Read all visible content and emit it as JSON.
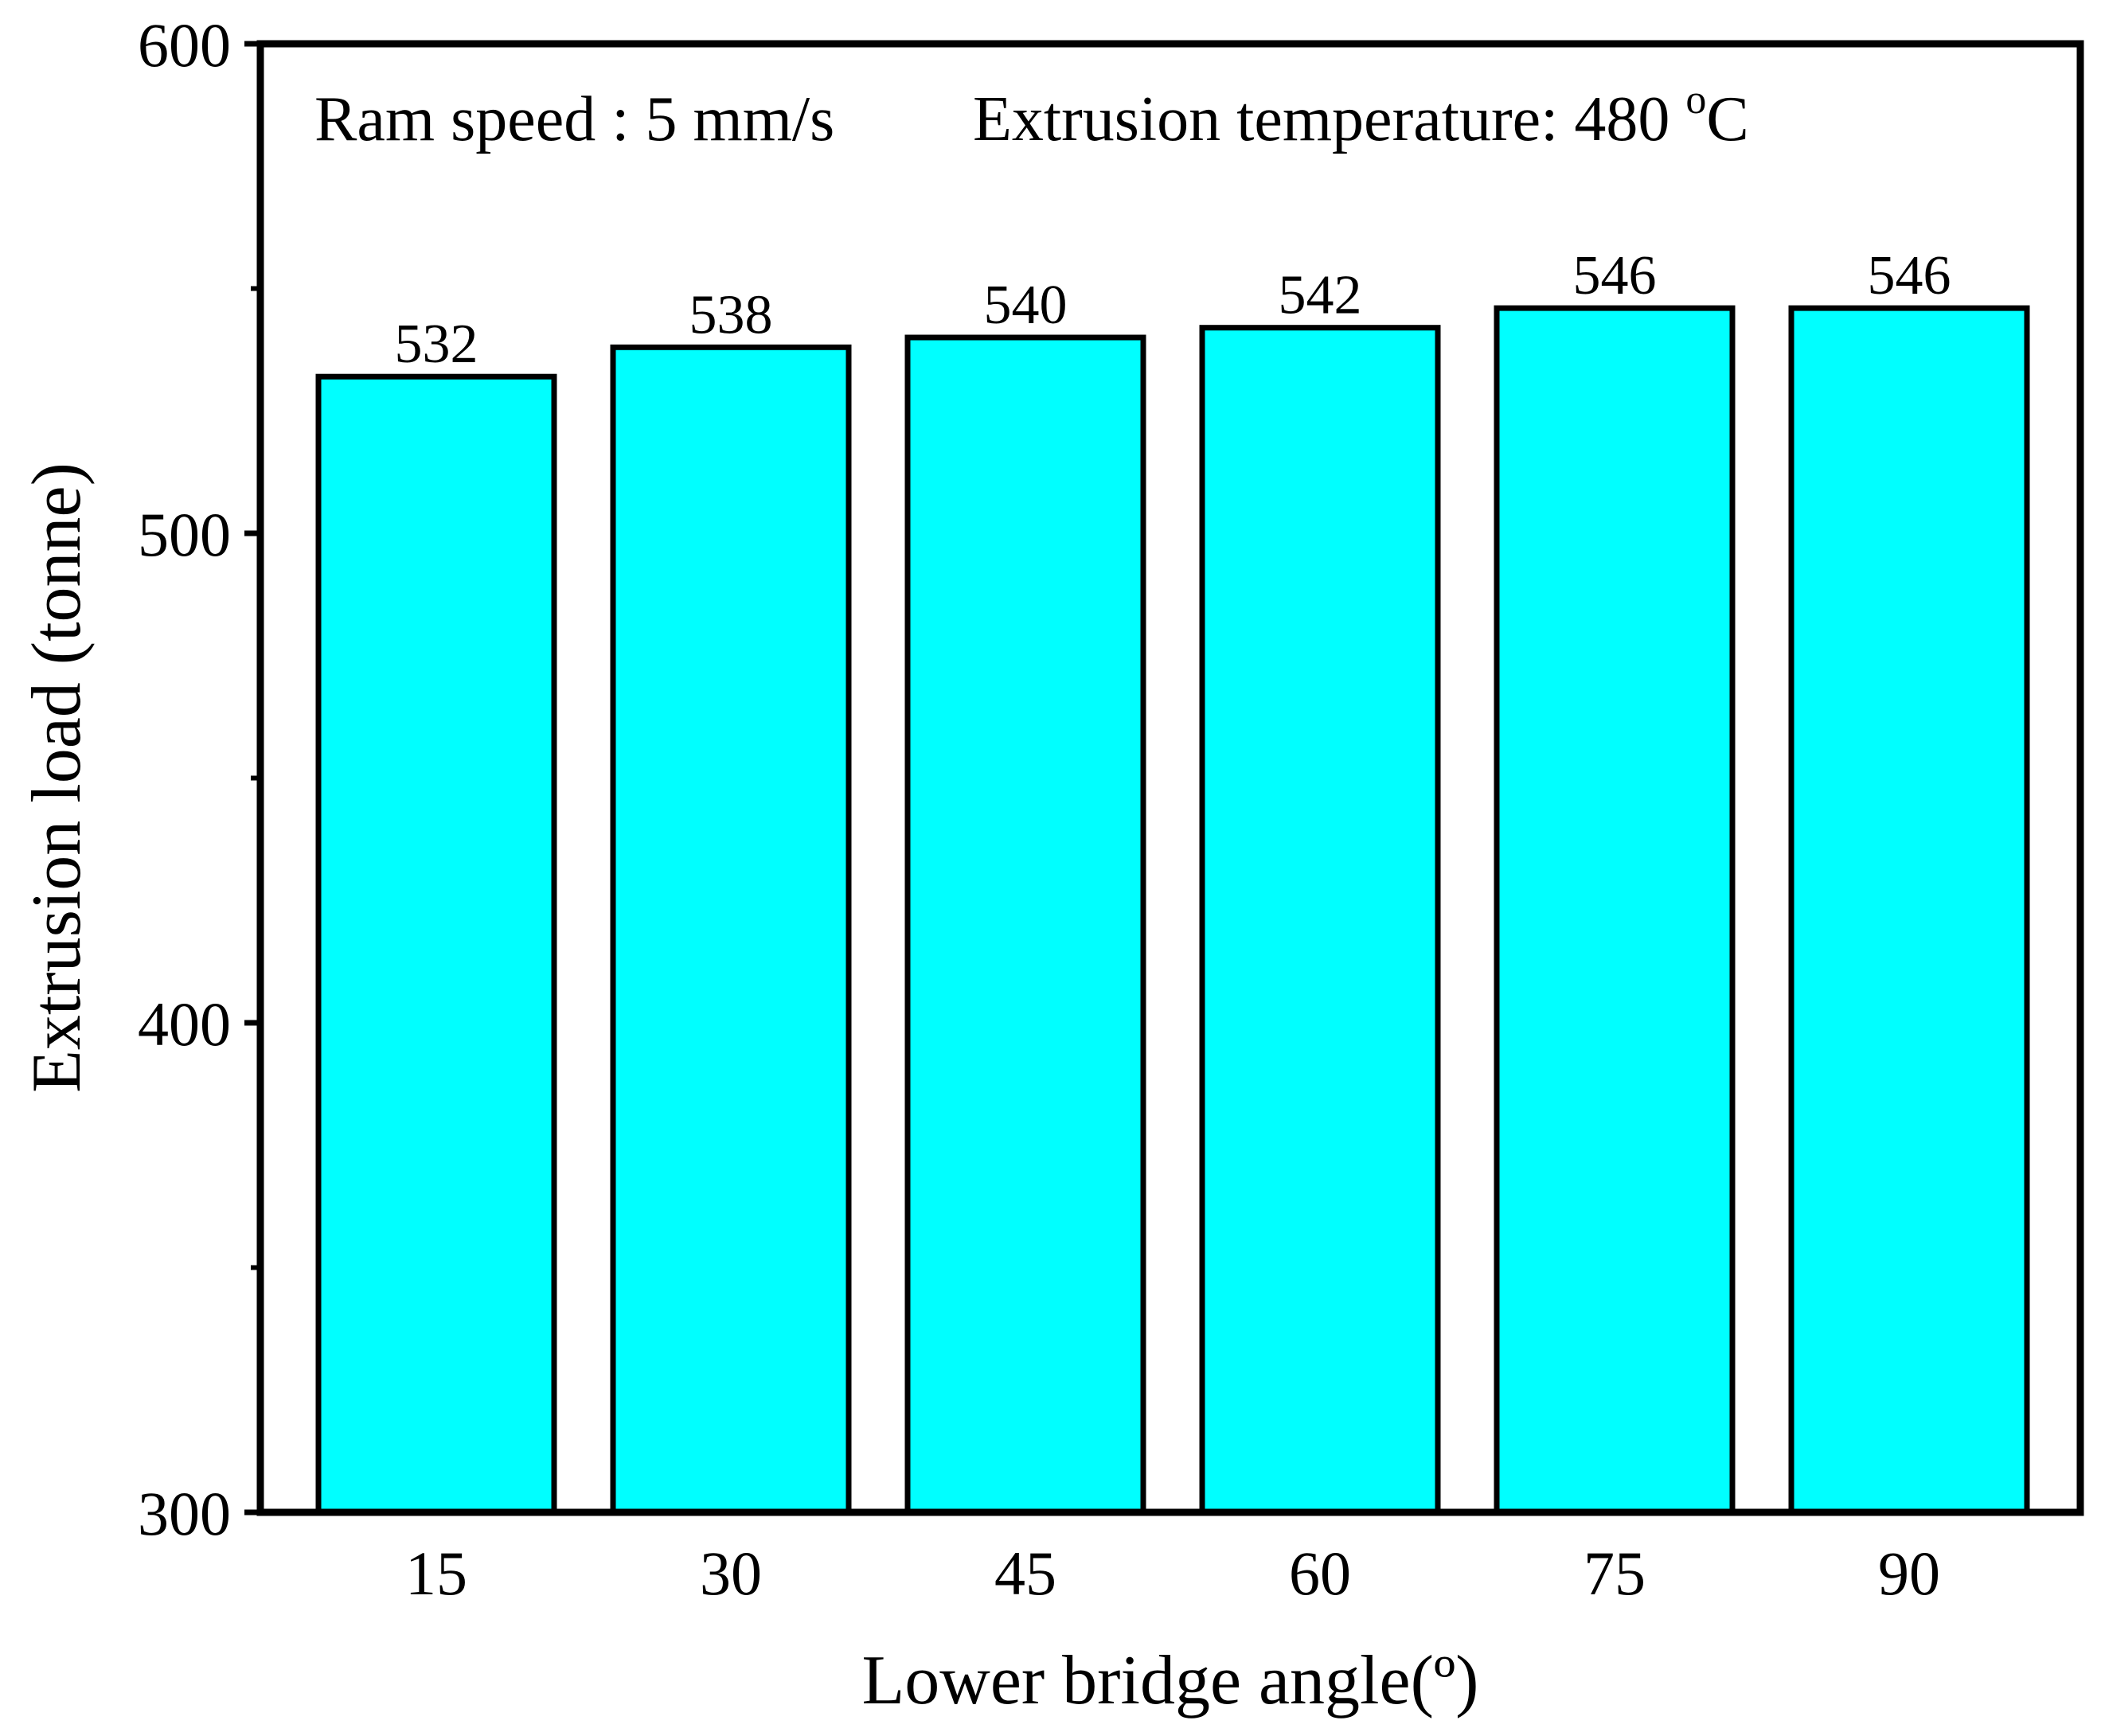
{
  "chart_data": {
    "type": "bar",
    "categories": [
      "15",
      "30",
      "45",
      "60",
      "75",
      "90"
    ],
    "values": [
      532,
      538,
      540,
      542,
      546,
      546
    ],
    "value_labels": [
      "532",
      "538",
      "540",
      "542",
      "546",
      "546"
    ],
    "xlabel": "Lower bridge angle(º)",
    "ylabel": "Extrusion load (tonne)",
    "ylim": [
      300,
      600
    ],
    "yticks": [
      300,
      400,
      500,
      600
    ],
    "ytick_labels": [
      "300",
      "400",
      "500",
      "600"
    ],
    "yminor_ticks": [
      350,
      450,
      550
    ],
    "bar_color": "#00FFFF",
    "annotation": {
      "ram_speed": "Ram speed : 5 mm/s",
      "temperature_prefix": "Extrusion temperature: 480 ",
      "temperature_degree": "o",
      "temperature_unit": "C"
    }
  }
}
